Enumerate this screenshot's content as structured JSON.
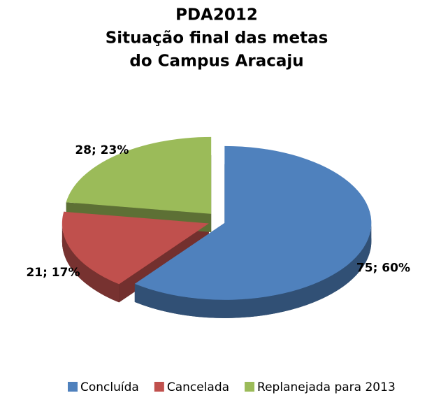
{
  "chart_data": {
    "type": "pie",
    "title": [
      "PDA2012",
      "Situação final das metas",
      "do Campus Aracaju"
    ],
    "categories": [
      "Concluída",
      "Cancelada",
      "Replanejada para 2013"
    ],
    "values": [
      75,
      21,
      28
    ],
    "value_labels": [
      "75; 60%",
      "21; 17%",
      "28; 23%"
    ],
    "colors": [
      "#4f81bd",
      "#c0504d",
      "#9bbb59"
    ],
    "legend": "bottom"
  }
}
